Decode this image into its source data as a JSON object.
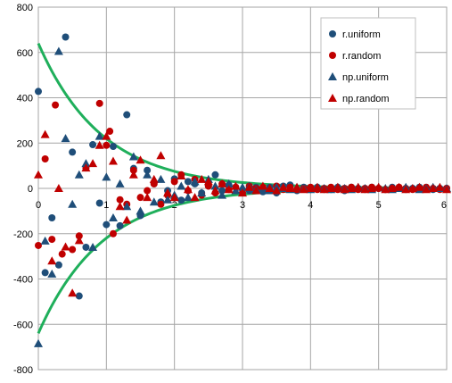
{
  "chart_data": {
    "type": "scatter",
    "x_range": [
      0,
      6
    ],
    "y_range": [
      -800,
      800
    ],
    "x_ticks": [
      "0",
      "1",
      "2",
      "3",
      "4",
      "5",
      "6"
    ],
    "y_ticks": [
      "800",
      "600",
      "400",
      "200",
      "0",
      "-200",
      "-400",
      "-600",
      "-800"
    ],
    "grid": true,
    "legend_position": "top-right",
    "series": [
      {
        "name": "r.uniform",
        "marker": "circle",
        "color": "#1F4E79",
        "points": [
          [
            0.0,
            428
          ],
          [
            0.1,
            -372
          ],
          [
            0.2,
            -130
          ],
          [
            0.3,
            -338
          ],
          [
            0.4,
            668
          ],
          [
            0.5,
            160
          ],
          [
            0.6,
            -475
          ],
          [
            0.7,
            -260
          ],
          [
            0.8,
            193
          ],
          [
            0.9,
            -65
          ],
          [
            1.0,
            -160
          ],
          [
            1.1,
            185
          ],
          [
            1.2,
            -165
          ],
          [
            1.3,
            325
          ],
          [
            1.4,
            88
          ],
          [
            1.5,
            -120
          ],
          [
            1.6,
            80
          ],
          [
            1.7,
            20
          ],
          [
            1.8,
            -60
          ],
          [
            1.9,
            -10
          ],
          [
            2.0,
            42
          ],
          [
            2.1,
            -52
          ],
          [
            2.2,
            30
          ],
          [
            2.3,
            20
          ],
          [
            2.4,
            -20
          ],
          [
            2.5,
            10
          ],
          [
            2.6,
            60
          ],
          [
            2.7,
            -10
          ],
          [
            2.8,
            15
          ],
          [
            2.9,
            5
          ],
          [
            3.0,
            -20
          ],
          [
            3.1,
            -10
          ],
          [
            3.2,
            5
          ],
          [
            3.3,
            -15
          ],
          [
            3.4,
            5
          ],
          [
            3.5,
            -20
          ],
          [
            3.6,
            10
          ],
          [
            3.7,
            15
          ],
          [
            3.8,
            -10
          ],
          [
            3.9,
            5
          ],
          [
            4.0,
            -5
          ],
          [
            4.1,
            5
          ],
          [
            4.2,
            -5
          ],
          [
            4.3,
            -5
          ],
          [
            4.4,
            5
          ],
          [
            4.5,
            -10
          ],
          [
            4.6,
            5
          ],
          [
            4.7,
            0
          ],
          [
            4.8,
            -5
          ],
          [
            4.9,
            5
          ],
          [
            5.0,
            0
          ],
          [
            5.1,
            -5
          ],
          [
            5.2,
            5
          ],
          [
            5.3,
            0
          ],
          [
            5.4,
            -5
          ],
          [
            5.5,
            0
          ],
          [
            5.6,
            5
          ],
          [
            5.7,
            0
          ],
          [
            5.8,
            -5
          ],
          [
            5.9,
            0
          ],
          [
            6.0,
            0
          ]
        ]
      },
      {
        "name": "r.random",
        "marker": "circle",
        "color": "#C00000",
        "points": [
          [
            0.0,
            -252
          ],
          [
            0.1,
            130
          ],
          [
            0.2,
            -225
          ],
          [
            0.25,
            368
          ],
          [
            0.35,
            -290
          ],
          [
            0.5,
            -270
          ],
          [
            0.6,
            -210
          ],
          [
            0.7,
            90
          ],
          [
            0.9,
            375
          ],
          [
            1.0,
            190
          ],
          [
            1.05,
            252
          ],
          [
            1.1,
            -200
          ],
          [
            1.2,
            -50
          ],
          [
            1.3,
            -70
          ],
          [
            1.4,
            80
          ],
          [
            1.5,
            -40
          ],
          [
            1.6,
            -10
          ],
          [
            1.7,
            20
          ],
          [
            1.8,
            -70
          ],
          [
            1.9,
            -30
          ],
          [
            2.0,
            30
          ],
          [
            2.1,
            60
          ],
          [
            2.2,
            -10
          ],
          [
            2.3,
            40
          ],
          [
            2.4,
            -30
          ],
          [
            2.5,
            10
          ],
          [
            2.6,
            -20
          ],
          [
            2.7,
            20
          ],
          [
            2.8,
            -5
          ],
          [
            2.9,
            5
          ],
          [
            3.0,
            -20
          ],
          [
            3.1,
            10
          ],
          [
            3.2,
            0
          ],
          [
            3.3,
            5
          ],
          [
            3.4,
            -10
          ],
          [
            3.5,
            10
          ],
          [
            3.6,
            -5
          ],
          [
            3.7,
            5
          ],
          [
            3.8,
            -5
          ],
          [
            3.9,
            0
          ],
          [
            4.0,
            5
          ],
          [
            4.1,
            -5
          ],
          [
            4.2,
            0
          ],
          [
            4.3,
            5
          ],
          [
            4.4,
            -5
          ],
          [
            4.5,
            0
          ],
          [
            4.6,
            5
          ],
          [
            4.7,
            -5
          ],
          [
            4.8,
            0
          ],
          [
            4.9,
            5
          ],
          [
            5.0,
            0
          ],
          [
            5.1,
            -5
          ],
          [
            5.2,
            0
          ],
          [
            5.3,
            5
          ],
          [
            5.4,
            0
          ],
          [
            5.5,
            -5
          ],
          [
            5.6,
            0
          ],
          [
            5.7,
            5
          ],
          [
            5.8,
            0
          ],
          [
            5.9,
            -5
          ],
          [
            6.0,
            0
          ]
        ]
      },
      {
        "name": "np.uniform",
        "marker": "triangle",
        "color": "#1F4E79",
        "points": [
          [
            0.0,
            -685
          ],
          [
            0.1,
            -232
          ],
          [
            0.2,
            -378
          ],
          [
            0.3,
            605
          ],
          [
            0.4,
            220
          ],
          [
            0.5,
            -70
          ],
          [
            0.6,
            60
          ],
          [
            0.7,
            110
          ],
          [
            0.8,
            -260
          ],
          [
            0.9,
            230
          ],
          [
            1.0,
            50
          ],
          [
            1.1,
            -130
          ],
          [
            1.2,
            20
          ],
          [
            1.3,
            -80
          ],
          [
            1.4,
            140
          ],
          [
            1.5,
            -100
          ],
          [
            1.6,
            60
          ],
          [
            1.7,
            -60
          ],
          [
            1.8,
            40
          ],
          [
            1.9,
            -50
          ],
          [
            2.0,
            -30
          ],
          [
            2.1,
            10
          ],
          [
            2.2,
            -40
          ],
          [
            2.3,
            30
          ],
          [
            2.4,
            -20
          ],
          [
            2.5,
            40
          ],
          [
            2.6,
            10
          ],
          [
            2.7,
            -30
          ],
          [
            2.8,
            20
          ],
          [
            2.9,
            -10
          ],
          [
            3.0,
            5
          ],
          [
            3.1,
            10
          ],
          [
            3.2,
            -5
          ],
          [
            3.3,
            5
          ],
          [
            3.4,
            -10
          ],
          [
            3.5,
            5
          ],
          [
            3.6,
            0
          ],
          [
            3.7,
            -5
          ],
          [
            3.8,
            5
          ],
          [
            3.9,
            0
          ],
          [
            4.0,
            -5
          ],
          [
            4.1,
            5
          ],
          [
            4.2,
            0
          ],
          [
            4.3,
            -5
          ],
          [
            4.4,
            5
          ],
          [
            4.5,
            0
          ],
          [
            4.6,
            -5
          ],
          [
            4.7,
            5
          ],
          [
            4.8,
            0
          ],
          [
            4.9,
            -5
          ],
          [
            5.0,
            5
          ],
          [
            5.1,
            0
          ],
          [
            5.2,
            -5
          ],
          [
            5.3,
            0
          ],
          [
            5.4,
            5
          ],
          [
            5.5,
            0
          ],
          [
            5.6,
            -5
          ],
          [
            5.7,
            0
          ],
          [
            5.8,
            5
          ],
          [
            5.9,
            0
          ],
          [
            6.0,
            0
          ]
        ]
      },
      {
        "name": "np.random",
        "marker": "triangle",
        "color": "#C00000",
        "points": [
          [
            0.0,
            60
          ],
          [
            0.1,
            238
          ],
          [
            0.2,
            -320
          ],
          [
            0.3,
            0
          ],
          [
            0.4,
            -258
          ],
          [
            0.5,
            -462
          ],
          [
            0.6,
            -230
          ],
          [
            0.7,
            90
          ],
          [
            0.8,
            110
          ],
          [
            0.9,
            190
          ],
          [
            1.0,
            230
          ],
          [
            1.1,
            120
          ],
          [
            1.2,
            -80
          ],
          [
            1.3,
            -140
          ],
          [
            1.4,
            60
          ],
          [
            1.5,
            125
          ],
          [
            1.6,
            -40
          ],
          [
            1.7,
            40
          ],
          [
            1.8,
            145
          ],
          [
            1.9,
            -20
          ],
          [
            2.0,
            -40
          ],
          [
            2.1,
            55
          ],
          [
            2.2,
            -5
          ],
          [
            2.3,
            -40
          ],
          [
            2.4,
            40
          ],
          [
            2.5,
            30
          ],
          [
            2.6,
            -10
          ],
          [
            2.7,
            20
          ],
          [
            2.8,
            -5
          ],
          [
            2.9,
            10
          ],
          [
            3.0,
            -20
          ],
          [
            3.1,
            5
          ],
          [
            3.2,
            -10
          ],
          [
            3.3,
            10
          ],
          [
            3.4,
            0
          ],
          [
            3.5,
            -10
          ],
          [
            3.6,
            5
          ],
          [
            3.7,
            0
          ],
          [
            3.8,
            5
          ],
          [
            3.9,
            -5
          ],
          [
            4.0,
            0
          ],
          [
            4.1,
            5
          ],
          [
            4.2,
            -5
          ],
          [
            4.3,
            0
          ],
          [
            4.4,
            5
          ],
          [
            4.5,
            -5
          ],
          [
            4.6,
            0
          ],
          [
            4.7,
            5
          ],
          [
            4.8,
            -5
          ],
          [
            4.9,
            0
          ],
          [
            5.0,
            5
          ],
          [
            5.1,
            -5
          ],
          [
            5.2,
            0
          ],
          [
            5.3,
            5
          ],
          [
            5.4,
            -5
          ],
          [
            5.5,
            0
          ],
          [
            5.6,
            5
          ],
          [
            5.7,
            -5
          ],
          [
            5.8,
            0
          ],
          [
            5.9,
            5
          ],
          [
            6.0,
            -5
          ]
        ]
      }
    ],
    "envelope": {
      "color": "#1FAF5B",
      "amplitude": 640,
      "decay": 1.07
    }
  }
}
